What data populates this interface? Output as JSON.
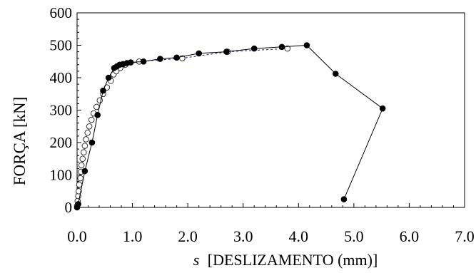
{
  "chart_data": {
    "type": "scatter",
    "xlabel_italic": "s",
    "xlabel_rest": "[DESLIZAMENTO (mm)]",
    "ylabel": "FORÇA [kN]",
    "xlim": [
      0,
      7
    ],
    "ylim": [
      0,
      600
    ],
    "x_ticks": [
      "0.0",
      "1.0",
      "2.0",
      "3.0",
      "4.0",
      "5.0",
      "6.0",
      "7.0"
    ],
    "x_tick_values": [
      0,
      1,
      2,
      3,
      4,
      5,
      6,
      7
    ],
    "y_ticks": [
      "0",
      "100",
      "200",
      "300",
      "400",
      "500",
      "600"
    ],
    "y_tick_values": [
      0,
      100,
      200,
      300,
      400,
      500,
      600
    ],
    "legend": "none",
    "grid": false,
    "series": [
      {
        "marker": "filled-circle",
        "line": "solid",
        "color": "#000000",
        "x": [
          0.0,
          0.02,
          0.14,
          0.27,
          0.37,
          0.47,
          0.57,
          0.67,
          0.72,
          0.77,
          0.83,
          0.9,
          0.97,
          1.2,
          1.5,
          1.8,
          2.2,
          2.7,
          3.2,
          3.7,
          4.15,
          4.67,
          5.52,
          4.82
        ],
        "y": [
          0,
          10,
          112,
          200,
          285,
          360,
          400,
          430,
          435,
          440,
          442,
          445,
          447,
          450,
          458,
          462,
          475,
          480,
          490,
          495,
          500,
          412,
          305,
          25
        ]
      },
      {
        "marker": "open-circle",
        "line": "dashed",
        "color": "#1a1a6e",
        "x": [
          0.0,
          0.01,
          0.02,
          0.03,
          0.04,
          0.06,
          0.07,
          0.08,
          0.1,
          0.12,
          0.14,
          0.16,
          0.19,
          0.22,
          0.26,
          0.3,
          0.35,
          0.41,
          0.47,
          0.54,
          0.61,
          0.66,
          0.71,
          0.78,
          0.87,
          1.12,
          1.9,
          2.72,
          3.8
        ],
        "y": [
          5,
          20,
          35,
          50,
          70,
          90,
          110,
          130,
          150,
          170,
          190,
          210,
          230,
          250,
          270,
          290,
          310,
          330,
          350,
          370,
          390,
          410,
          420,
          430,
          440,
          450,
          460,
          480,
          490
        ]
      }
    ]
  }
}
